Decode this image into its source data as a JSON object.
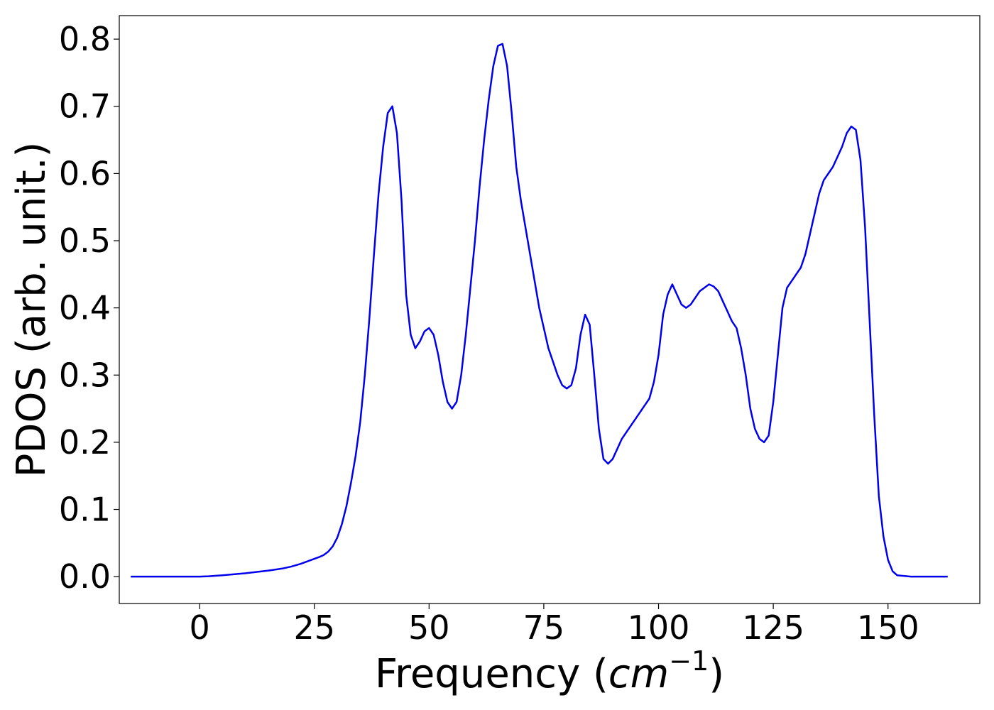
{
  "chart_data": {
    "type": "line",
    "title": "",
    "xlabel": "Frequency (",
    "xlabel_math": "cm",
    "xlabel_sup": "−1",
    "xlabel_close": ")",
    "ylabel": "PDOS (arb. unit.)",
    "xlim": [
      -17.5,
      170
    ],
    "ylim": [
      -0.04,
      0.835
    ],
    "xticks": [
      0,
      25,
      50,
      75,
      100,
      125,
      150
    ],
    "yticks": [
      0.0,
      0.1,
      0.2,
      0.3,
      0.4,
      0.5,
      0.6,
      0.7,
      0.8
    ],
    "xtick_labels": [
      "0",
      "25",
      "50",
      "75",
      "100",
      "125",
      "150"
    ],
    "ytick_labels": [
      "0.0",
      "0.1",
      "0.2",
      "0.3",
      "0.4",
      "0.5",
      "0.6",
      "0.7",
      "0.8"
    ],
    "grid": false,
    "legend": "none",
    "line_color": "#0000ee",
    "series": [
      {
        "x": [
          -15,
          0,
          2,
          5,
          10,
          15,
          18,
          20,
          22,
          24,
          26,
          27,
          28,
          29,
          30,
          31,
          32,
          33,
          34,
          35,
          36,
          37,
          38,
          39,
          40,
          41,
          42,
          43,
          44,
          45,
          46,
          47,
          48,
          49,
          50,
          51,
          52,
          53,
          54,
          55,
          56,
          57,
          58,
          59,
          60,
          61,
          62,
          63,
          64,
          65,
          66,
          67,
          68,
          69,
          70,
          71,
          72,
          73,
          74,
          75,
          76,
          77,
          78,
          79,
          80,
          81,
          82,
          83,
          84,
          85,
          86,
          87,
          88,
          89,
          90,
          91,
          92,
          93,
          94,
          95,
          96,
          97,
          98,
          99,
          100,
          101,
          102,
          103,
          104,
          105,
          106,
          107,
          108,
          109,
          110,
          111,
          112,
          113,
          114,
          115,
          116,
          117,
          118,
          119,
          120,
          121,
          122,
          123,
          124,
          125,
          126,
          127,
          128,
          129,
          130,
          131,
          132,
          133,
          134,
          135,
          136,
          137,
          138,
          139,
          140,
          141,
          142,
          143,
          144,
          145,
          146,
          147,
          148,
          149,
          150,
          151,
          152,
          155,
          160,
          163
        ],
        "y": [
          0.0,
          0.0,
          0.0005,
          0.002,
          0.005,
          0.009,
          0.012,
          0.015,
          0.019,
          0.024,
          0.029,
          0.032,
          0.037,
          0.045,
          0.058,
          0.078,
          0.105,
          0.14,
          0.18,
          0.23,
          0.3,
          0.385,
          0.48,
          0.57,
          0.64,
          0.69,
          0.7,
          0.66,
          0.56,
          0.42,
          0.36,
          0.34,
          0.35,
          0.365,
          0.37,
          0.36,
          0.33,
          0.29,
          0.26,
          0.25,
          0.26,
          0.3,
          0.36,
          0.43,
          0.5,
          0.58,
          0.65,
          0.71,
          0.76,
          0.79,
          0.793,
          0.76,
          0.69,
          0.61,
          0.56,
          0.52,
          0.48,
          0.44,
          0.4,
          0.37,
          0.34,
          0.32,
          0.3,
          0.285,
          0.28,
          0.285,
          0.31,
          0.36,
          0.39,
          0.375,
          0.3,
          0.22,
          0.175,
          0.168,
          0.175,
          0.19,
          0.205,
          0.215,
          0.225,
          0.235,
          0.245,
          0.255,
          0.265,
          0.29,
          0.33,
          0.39,
          0.42,
          0.435,
          0.42,
          0.405,
          0.4,
          0.405,
          0.415,
          0.425,
          0.43,
          0.435,
          0.432,
          0.425,
          0.41,
          0.395,
          0.38,
          0.37,
          0.34,
          0.3,
          0.25,
          0.22,
          0.205,
          0.2,
          0.21,
          0.26,
          0.33,
          0.4,
          0.43,
          0.44,
          0.45,
          0.46,
          0.48,
          0.51,
          0.54,
          0.57,
          0.59,
          0.6,
          0.61,
          0.625,
          0.64,
          0.66,
          0.67,
          0.665,
          0.62,
          0.52,
          0.38,
          0.24,
          0.12,
          0.06,
          0.025,
          0.008,
          0.002,
          0.0,
          0.0,
          0.0
        ]
      }
    ]
  }
}
